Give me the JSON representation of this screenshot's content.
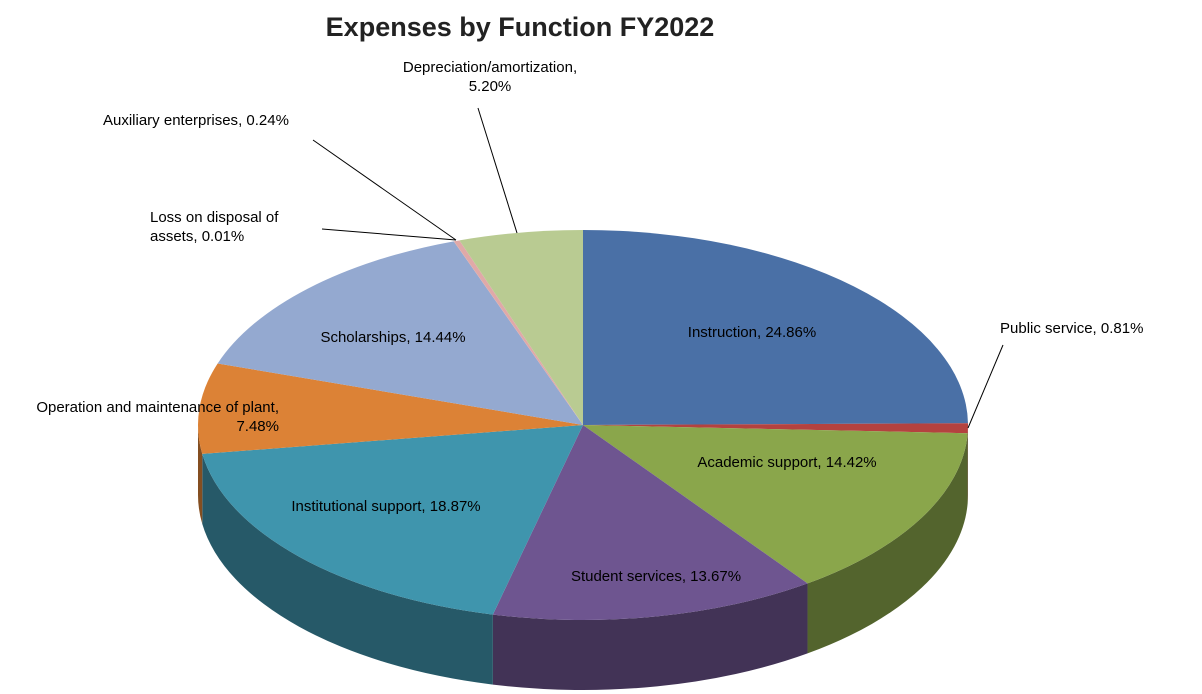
{
  "chart_data": {
    "type": "pie",
    "title": "Expenses by Function FY2022",
    "categories": [
      "Instruction",
      "Public service",
      "Academic support",
      "Student services",
      "Institutional support",
      "Operation and maintenance of plant",
      "Scholarships",
      "Loss on disposal of assets",
      "Auxiliary enterprises",
      "Depreciation/amortization"
    ],
    "values": [
      24.86,
      0.81,
      14.42,
      13.67,
      18.87,
      7.48,
      14.44,
      0.01,
      0.24,
      5.2
    ],
    "value_labels": [
      "24.86%",
      "0.81%",
      "14.42%",
      "13.67%",
      "18.87%",
      "7.48%",
      "14.44%",
      "0.01%",
      "0.24%",
      "5.20%"
    ],
    "label_separator": ", ",
    "colors": [
      "#4a70a6",
      "#b4423f",
      "#8aa64b",
      "#6e5590",
      "#3f95ad",
      "#dc8236",
      "#94a9d0",
      "#d89693",
      "#e0a9a8",
      "#b9cb92"
    ]
  }
}
